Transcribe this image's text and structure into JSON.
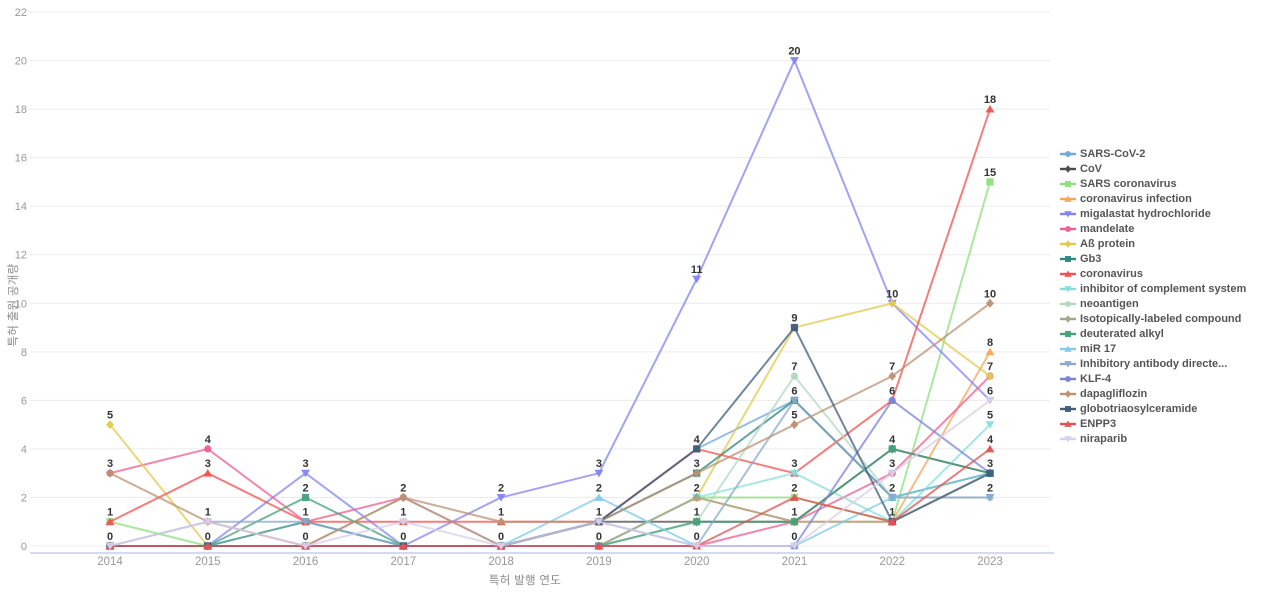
{
  "chart_data": {
    "type": "line",
    "title": "",
    "xlabel": "특허 발행 연도",
    "ylabel": "특허 출원 공개량",
    "x": [
      2014,
      2015,
      2016,
      2017,
      2018,
      2019,
      2020,
      2021,
      2022,
      2023
    ],
    "ylim": [
      0,
      22
    ],
    "ytick_step": 2,
    "grid": true,
    "legend_position": "right",
    "axis_color": "#c3cdf0",
    "grid_color": "#ececec",
    "tick_label_color": "#999999",
    "data_label_color": "#333333",
    "series": [
      {
        "name": "SARS-CoV-2",
        "marker": "circle",
        "color": "#6fa8dc",
        "values": [
          0,
          0,
          0,
          0,
          0,
          1,
          4,
          6,
          2,
          2
        ]
      },
      {
        "name": "CoV",
        "marker": "diamond",
        "color": "#4d4d4d",
        "values": [
          0,
          0,
          0,
          0,
          0,
          1,
          1,
          1,
          4,
          3
        ]
      },
      {
        "name": "SARS coronavirus",
        "marker": "square",
        "color": "#8ce07d",
        "values": [
          1,
          0,
          0,
          0,
          0,
          0,
          2,
          2,
          1,
          15
        ]
      },
      {
        "name": "coronavirus infection",
        "marker": "triangle-up",
        "color": "#f5a55c",
        "values": [
          0,
          0,
          0,
          0,
          0,
          0,
          2,
          1,
          1,
          8
        ]
      },
      {
        "name": "migalastat hydrochloride",
        "marker": "triangle-down",
        "color": "#8383f7",
        "values": [
          0,
          0,
          3,
          0,
          2,
          3,
          11,
          20,
          10,
          6
        ]
      },
      {
        "name": "mandelate",
        "marker": "circle",
        "color": "#ef5f8e",
        "values": [
          3,
          4,
          1,
          2,
          0,
          0,
          0,
          1,
          3,
          7
        ]
      },
      {
        "name": "Aß protein",
        "marker": "diamond",
        "color": "#e3c94e",
        "values": [
          5,
          0,
          0,
          0,
          0,
          0,
          2,
          9,
          10,
          7
        ]
      },
      {
        "name": "Gb3",
        "marker": "square",
        "color": "#2a8a80",
        "values": [
          0,
          0,
          1,
          0,
          0,
          1,
          3,
          6,
          2,
          3
        ]
      },
      {
        "name": "coronavirus",
        "marker": "triangle-up",
        "color": "#f2524f",
        "values": [
          1,
          3,
          1,
          1,
          1,
          1,
          4,
          3,
          6,
          18
        ]
      },
      {
        "name": "inhibitor of complement system",
        "marker": "triangle-down",
        "color": "#85e0dc",
        "values": [
          0,
          0,
          0,
          0,
          0,
          0,
          2,
          3,
          1,
          5
        ]
      },
      {
        "name": "neoantigen",
        "marker": "circle",
        "color": "#b2d9c0",
        "values": [
          0,
          0,
          0,
          0,
          0,
          0,
          1,
          7,
          2,
          2
        ]
      },
      {
        "name": "Isotopically-labeled compound",
        "marker": "diamond",
        "color": "#a7a489",
        "values": [
          0,
          0,
          0,
          2,
          0,
          0,
          2,
          1,
          1,
          3
        ]
      },
      {
        "name": "deuterated alkyl",
        "marker": "square",
        "color": "#46a17b",
        "values": [
          0,
          0,
          2,
          0,
          0,
          0,
          1,
          1,
          4,
          3
        ]
      },
      {
        "name": "miR 17",
        "marker": "triangle-up",
        "color": "#7fcbe8",
        "values": [
          0,
          0,
          0,
          0,
          0,
          2,
          0,
          0,
          2,
          3
        ]
      },
      {
        "name": "Inhibitory antibody directe...",
        "marker": "triangle-down",
        "color": "#89a9cf",
        "values": [
          0,
          1,
          1,
          0,
          0,
          1,
          0,
          6,
          2,
          2
        ]
      },
      {
        "name": "KLF-4",
        "marker": "circle",
        "color": "#7b83d9",
        "values": [
          0,
          0,
          0,
          0,
          0,
          0,
          0,
          0,
          6,
          3
        ]
      },
      {
        "name": "dapagliflozin",
        "marker": "diamond",
        "color": "#bd9071",
        "values": [
          3,
          1,
          0,
          2,
          1,
          1,
          3,
          5,
          7,
          10
        ]
      },
      {
        "name": "globotriaosylceramide",
        "marker": "square",
        "color": "#3e5f7d",
        "values": [
          0,
          0,
          0,
          0,
          0,
          1,
          4,
          9,
          1,
          3
        ]
      },
      {
        "name": "ENPP3",
        "marker": "triangle-up",
        "color": "#e25252",
        "values": [
          0,
          0,
          0,
          0,
          0,
          0,
          0,
          2,
          1,
          4
        ]
      },
      {
        "name": "niraparib",
        "marker": "triangle-down",
        "color": "#d8cdeb",
        "values": [
          0,
          1,
          0,
          1,
          0,
          1,
          0,
          0,
          3,
          6
        ]
      }
    ]
  }
}
